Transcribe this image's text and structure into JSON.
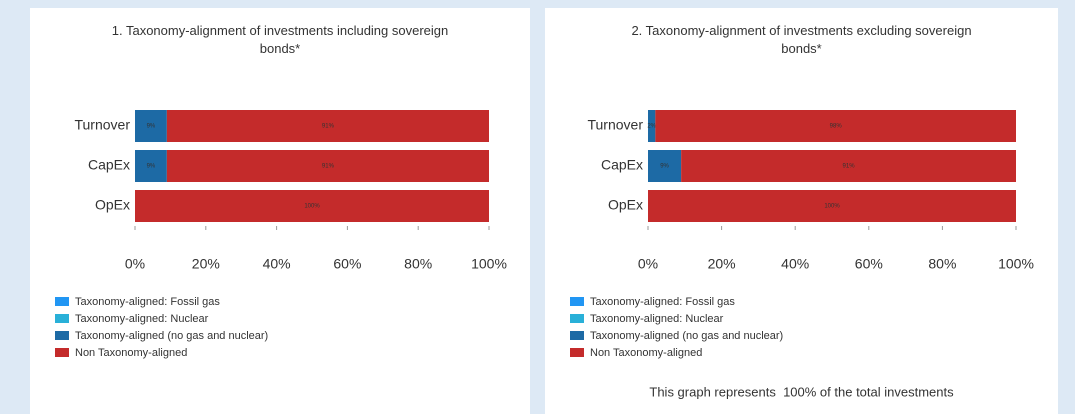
{
  "chart_data": [
    {
      "type": "stacked_barh",
      "title": "1. Taxonomy-alignment of investments including sovereign bonds*",
      "categories": [
        "Turnover",
        "CapEx",
        "OpEx"
      ],
      "series": [
        {
          "name": "Taxonomy-aligned: Fossil gas",
          "color": "#2196f3",
          "values": [
            0,
            0,
            0
          ]
        },
        {
          "name": "Taxonomy-aligned: Nuclear",
          "color": "#29b0d8",
          "values": [
            0,
            0,
            0
          ]
        },
        {
          "name": "Taxonomy-aligned (no gas and nuclear)",
          "color": "#1d6aa5",
          "values": [
            9,
            9,
            0
          ],
          "value_labels": [
            "9%",
            "9%",
            null
          ]
        },
        {
          "name": "Non Taxonomy-aligned",
          "color": "#c42b2b",
          "values": [
            91,
            91,
            100
          ],
          "value_labels": [
            "91%",
            "91%",
            "100%"
          ]
        }
      ],
      "xlim": [
        0,
        100
      ],
      "xticks": [
        {
          "value": 0,
          "label": "0%"
        },
        {
          "value": 20,
          "label": "20%"
        },
        {
          "value": 40,
          "label": "40%"
        },
        {
          "value": 60,
          "label": "60%"
        },
        {
          "value": 80,
          "label": "80%"
        },
        {
          "value": 100,
          "label": "100%"
        }
      ]
    },
    {
      "type": "stacked_barh",
      "title": "2. Taxonomy-alignment of investments excluding sovereign bonds*",
      "categories": [
        "Turnover",
        "CapEx",
        "OpEx"
      ],
      "series": [
        {
          "name": "Taxonomy-aligned: Fossil gas",
          "color": "#2196f3",
          "values": [
            0,
            0,
            0
          ]
        },
        {
          "name": "Taxonomy-aligned: Nuclear",
          "color": "#29b0d8",
          "values": [
            0,
            0,
            0
          ]
        },
        {
          "name": "Taxonomy-aligned (no gas and nuclear)",
          "color": "#1d6aa5",
          "values": [
            2,
            9,
            0
          ],
          "value_labels": [
            "2%",
            "9%",
            null
          ]
        },
        {
          "name": "Non Taxonomy-aligned",
          "color": "#c42b2b",
          "values": [
            98,
            91,
            100
          ],
          "value_labels": [
            "98%",
            "91%",
            "100%"
          ]
        }
      ],
      "xlim": [
        0,
        100
      ],
      "xticks": [
        {
          "value": 0,
          "label": "0%"
        },
        {
          "value": 20,
          "label": "20%"
        },
        {
          "value": 40,
          "label": "40%"
        },
        {
          "value": 60,
          "label": "60%"
        },
        {
          "value": 80,
          "label": "80%"
        },
        {
          "value": 100,
          "label": "100%"
        }
      ],
      "note": "This graph represents  100% of the total investments"
    }
  ]
}
